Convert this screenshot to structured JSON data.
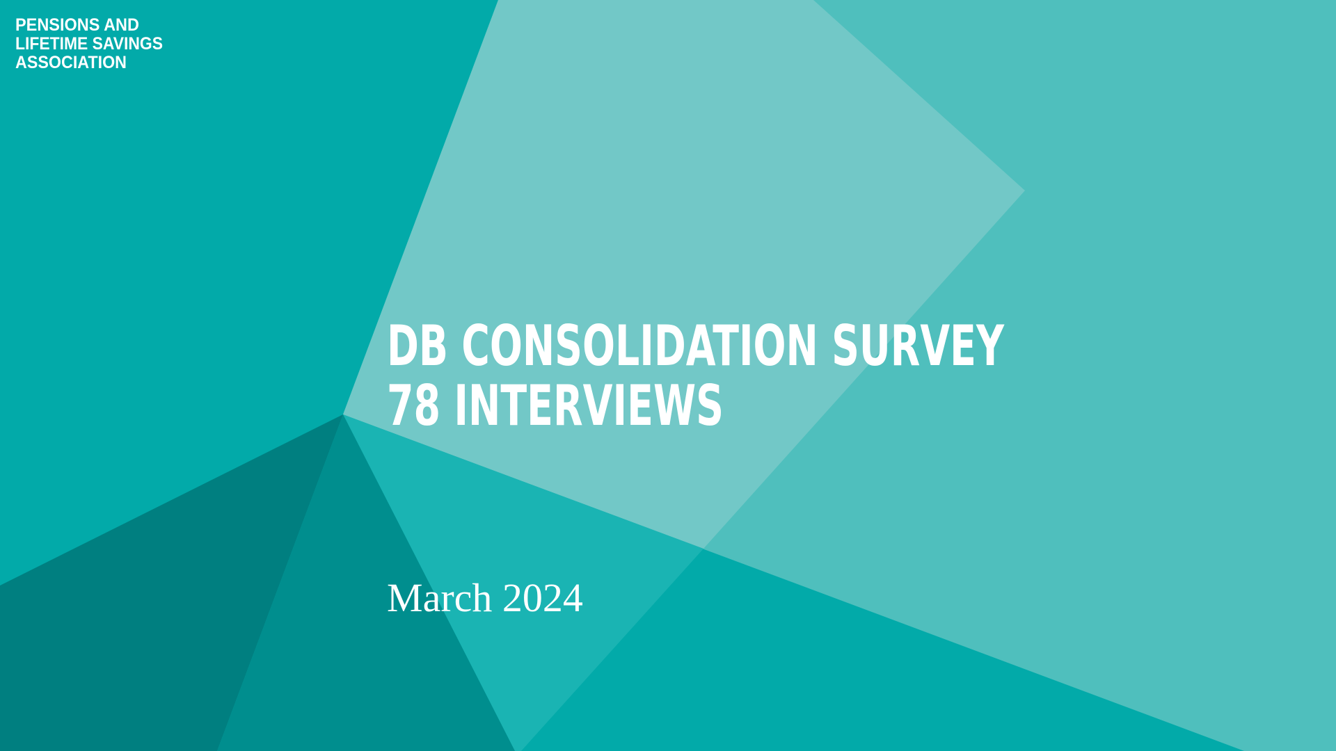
{
  "logo": {
    "lines": [
      "PENSIONS AND",
      "LIFETIME SAVINGS",
      "ASSOCIATION"
    ]
  },
  "title": {
    "lines": [
      "DB CONSOLIDATION SURVEY",
      "78 INTERVIEWS"
    ]
  },
  "date": "March 2024"
}
